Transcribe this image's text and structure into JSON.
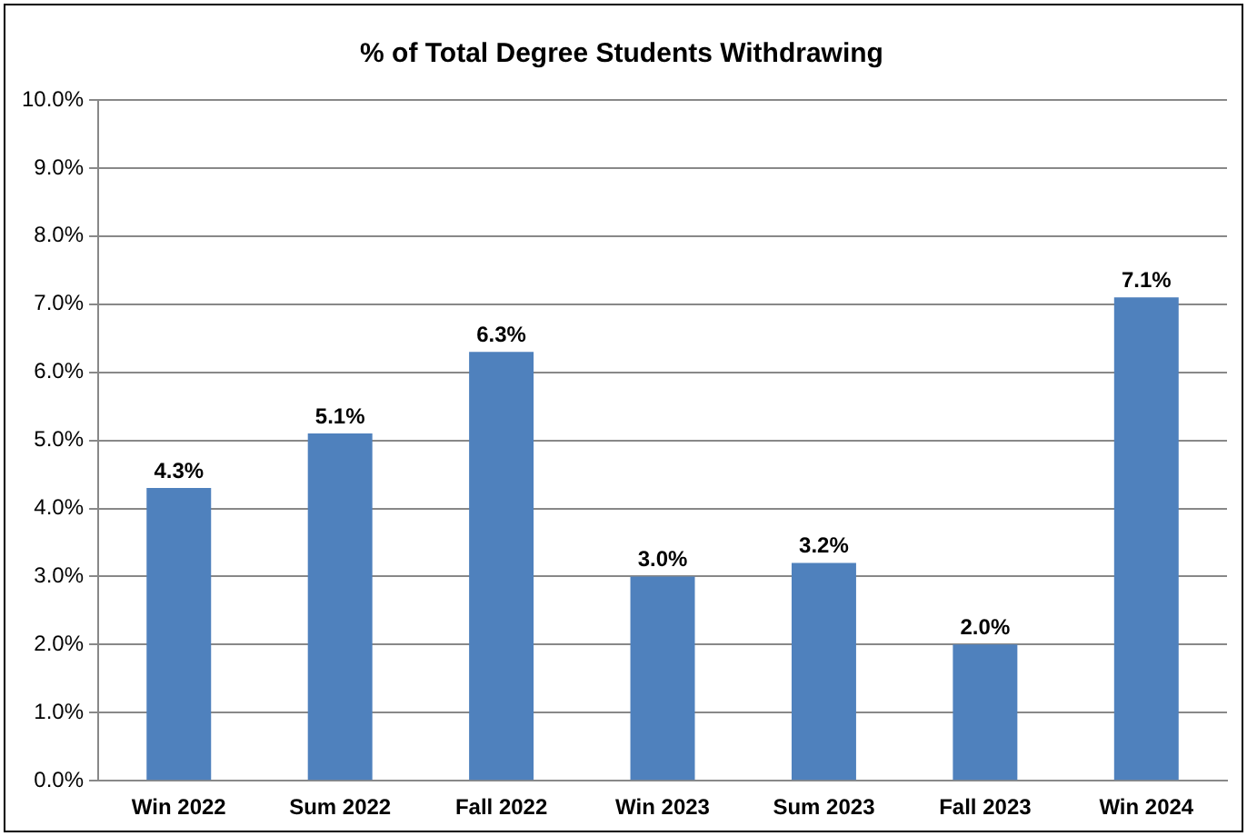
{
  "chart_data": {
    "type": "bar",
    "title": "% of Total Degree Students Withdrawing",
    "categories": [
      "Win 2022",
      "Sum 2022",
      "Fall 2022",
      "Win 2023",
      "Sum 2023",
      "Fall 2023",
      "Win 2024"
    ],
    "values": [
      4.3,
      5.1,
      6.3,
      3.0,
      3.2,
      2.0,
      7.1
    ],
    "value_labels": [
      "4.3%",
      "5.1%",
      "6.3%",
      "3.0%",
      "3.2%",
      "2.0%",
      "7.1%"
    ],
    "color": "#4f81bd",
    "ylim": [
      0,
      10
    ],
    "yticks": [
      {
        "value": 0,
        "label": "0.0%"
      },
      {
        "value": 1,
        "label": "1.0%"
      },
      {
        "value": 2,
        "label": "2.0%"
      },
      {
        "value": 3,
        "label": "3.0%"
      },
      {
        "value": 4,
        "label": "4.0%"
      },
      {
        "value": 5,
        "label": "5.0%"
      },
      {
        "value": 6,
        "label": "6.0%"
      },
      {
        "value": 7,
        "label": "7.0%"
      },
      {
        "value": 8,
        "label": "8.0%"
      },
      {
        "value": 9,
        "label": "9.0%"
      },
      {
        "value": 10,
        "label": "10.0%"
      }
    ],
    "grid": "y",
    "legend": false
  }
}
